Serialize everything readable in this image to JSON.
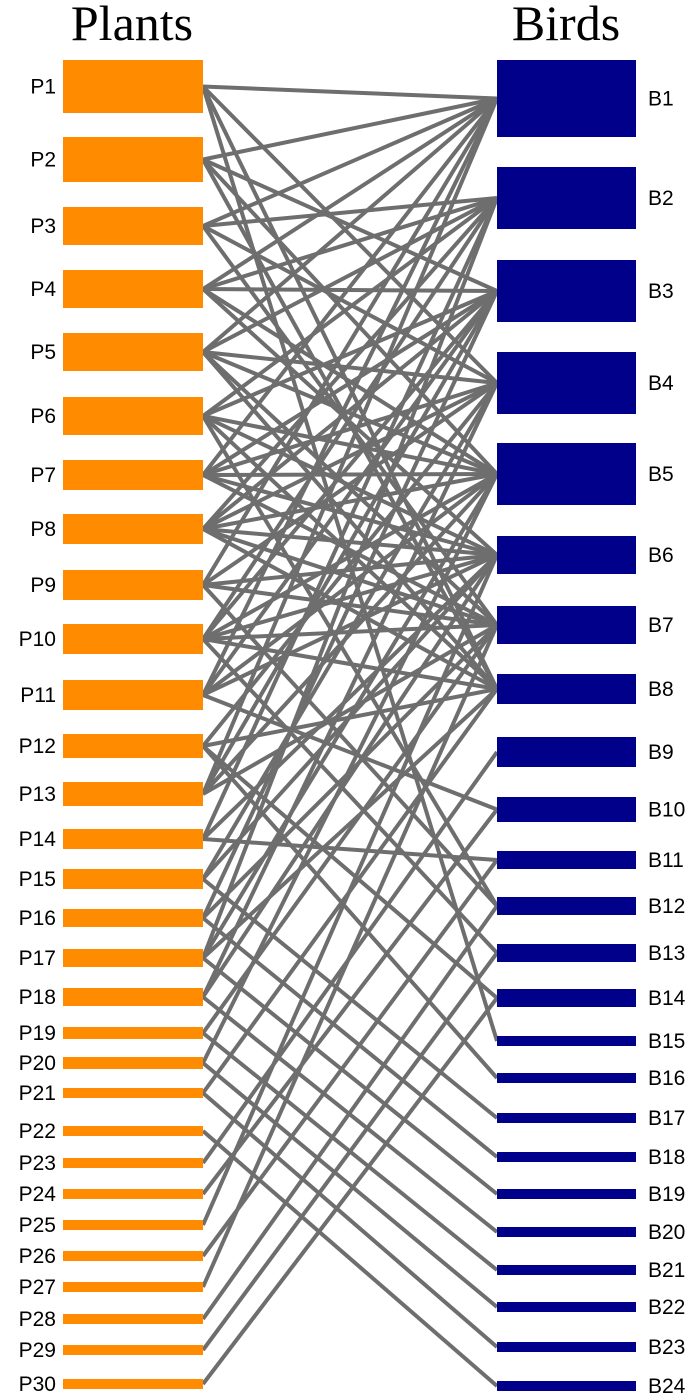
{
  "titles": {
    "plants": "Plants",
    "birds": "Birds"
  },
  "colors": {
    "plant": "#ff8c00",
    "bird": "#00008b",
    "link": "#6e6e6e"
  },
  "plants": [
    "P1",
    "P2",
    "P3",
    "P4",
    "P5",
    "P6",
    "P7",
    "P8",
    "P9",
    "P10",
    "P11",
    "P12",
    "P13",
    "P14",
    "P15",
    "P16",
    "P17",
    "P18",
    "P19",
    "P20",
    "P21",
    "P22",
    "P23",
    "P24",
    "P25",
    "P26",
    "P27",
    "P28",
    "P29",
    "P30"
  ],
  "birds": [
    "B1",
    "B2",
    "B3",
    "B4",
    "B5",
    "B6",
    "B7",
    "B8",
    "B9",
    "B10",
    "B11",
    "B12",
    "B13",
    "B14",
    "B15",
    "B16",
    "B17",
    "B18",
    "B19",
    "B20",
    "B21",
    "B22",
    "B23",
    "B24"
  ],
  "links": [
    [
      "P1",
      "B1"
    ],
    [
      "P1",
      "B4"
    ],
    [
      "P1",
      "B8"
    ],
    [
      "P1",
      "B15"
    ],
    [
      "P2",
      "B1"
    ],
    [
      "P2",
      "B3"
    ],
    [
      "P2",
      "B5"
    ],
    [
      "P2",
      "B8"
    ],
    [
      "P3",
      "B1"
    ],
    [
      "P3",
      "B2"
    ],
    [
      "P3",
      "B4"
    ],
    [
      "P3",
      "B7"
    ],
    [
      "P4",
      "B1"
    ],
    [
      "P4",
      "B2"
    ],
    [
      "P4",
      "B3"
    ],
    [
      "P4",
      "B5"
    ],
    [
      "P4",
      "B6"
    ],
    [
      "P5",
      "B1"
    ],
    [
      "P5",
      "B2"
    ],
    [
      "P5",
      "B4"
    ],
    [
      "P5",
      "B5"
    ],
    [
      "P5",
      "B7"
    ],
    [
      "P5",
      "B8"
    ],
    [
      "P6",
      "B2"
    ],
    [
      "P6",
      "B3"
    ],
    [
      "P6",
      "B5"
    ],
    [
      "P6",
      "B6"
    ],
    [
      "P6",
      "B8"
    ],
    [
      "P6",
      "B12"
    ],
    [
      "P7",
      "B1"
    ],
    [
      "P7",
      "B3"
    ],
    [
      "P7",
      "B4"
    ],
    [
      "P7",
      "B5"
    ],
    [
      "P7",
      "B6"
    ],
    [
      "P7",
      "B7"
    ],
    [
      "P8",
      "B2"
    ],
    [
      "P8",
      "B3"
    ],
    [
      "P8",
      "B4"
    ],
    [
      "P8",
      "B5"
    ],
    [
      "P8",
      "B6"
    ],
    [
      "P8",
      "B7"
    ],
    [
      "P8",
      "B8"
    ],
    [
      "P9",
      "B1"
    ],
    [
      "P9",
      "B4"
    ],
    [
      "P9",
      "B6"
    ],
    [
      "P9",
      "B7"
    ],
    [
      "P9",
      "B12"
    ],
    [
      "P10",
      "B2"
    ],
    [
      "P10",
      "B3"
    ],
    [
      "P10",
      "B5"
    ],
    [
      "P10",
      "B6"
    ],
    [
      "P10",
      "B7"
    ],
    [
      "P10",
      "B8"
    ],
    [
      "P10",
      "B13"
    ],
    [
      "P11",
      "B1"
    ],
    [
      "P11",
      "B3"
    ],
    [
      "P11",
      "B5"
    ],
    [
      "P11",
      "B6"
    ],
    [
      "P11",
      "B10"
    ],
    [
      "P12",
      "B4"
    ],
    [
      "P12",
      "B8"
    ],
    [
      "P12",
      "B14"
    ],
    [
      "P12",
      "B16"
    ],
    [
      "P13",
      "B1"
    ],
    [
      "P13",
      "B3"
    ],
    [
      "P13",
      "B5"
    ],
    [
      "P13",
      "B7"
    ],
    [
      "P14",
      "B2"
    ],
    [
      "P14",
      "B6"
    ],
    [
      "P14",
      "B11"
    ],
    [
      "P15",
      "B4"
    ],
    [
      "P15",
      "B6"
    ],
    [
      "P15",
      "B17"
    ],
    [
      "P16",
      "B3"
    ],
    [
      "P16",
      "B7"
    ],
    [
      "P16",
      "B18"
    ],
    [
      "P17",
      "B2"
    ],
    [
      "P17",
      "B5"
    ],
    [
      "P17",
      "B8"
    ],
    [
      "P17",
      "B19"
    ],
    [
      "P18",
      "B4"
    ],
    [
      "P18",
      "B6"
    ],
    [
      "P18",
      "B20"
    ],
    [
      "P19",
      "B7"
    ],
    [
      "P19",
      "B21"
    ],
    [
      "P20",
      "B5"
    ],
    [
      "P20",
      "B22"
    ],
    [
      "P21",
      "B8"
    ],
    [
      "P21",
      "B23"
    ],
    [
      "P22",
      "B24"
    ],
    [
      "P23",
      "B9"
    ],
    [
      "P24",
      "B10"
    ],
    [
      "P25",
      "B6"
    ],
    [
      "P26",
      "B11"
    ],
    [
      "P27",
      "B7"
    ],
    [
      "P28",
      "B12"
    ],
    [
      "P29",
      "B13"
    ],
    [
      "P30",
      "B14"
    ]
  ]
}
